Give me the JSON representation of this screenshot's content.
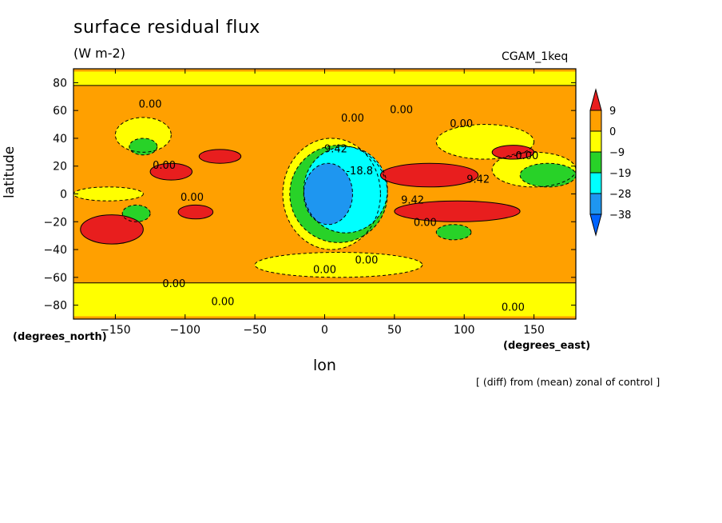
{
  "chart_data": {
    "type": "heatmap",
    "title": "surface residual flux",
    "units": "(W m-2)",
    "dataset": "CGAM_1keq",
    "xlabel": "lon",
    "ylabel": "latitude",
    "x_units": "(degrees_east)",
    "y_units": "(degrees_north)",
    "footnote": "[ (diff) from (mean) zonal of control ]",
    "xlim": [
      -180,
      180
    ],
    "ylim": [
      -90,
      90
    ],
    "x_ticks": [
      -150,
      -100,
      -50,
      0,
      50,
      100,
      150
    ],
    "y_ticks": [
      80,
      60,
      40,
      20,
      0,
      -20,
      -40,
      -60,
      -80
    ],
    "colorbar": {
      "labels": [
        "9",
        "0",
        "-9",
        "-19",
        "-28",
        "-38"
      ],
      "colors": [
        "#e81e1e",
        "#ffa000",
        "#ffff00",
        "#28d228",
        "#00ffff",
        "#1e96f0",
        "#0064ff"
      ]
    },
    "contour_labels": [
      "0.00",
      "9.42",
      "-9.42",
      "-18.8"
    ],
    "background_level": "0",
    "regions": [
      {
        "level": "-9",
        "color": "#ffff00",
        "lon": [
          -180,
          180
        ],
        "lat": [
          78,
          88
        ]
      },
      {
        "level": "-9",
        "color": "#ffff00",
        "lon": [
          -180,
          180
        ],
        "lat": [
          -88,
          -64
        ]
      },
      {
        "level": "-9",
        "color": "#ffff00",
        "lon": [
          -50,
          70
        ],
        "lat": [
          -60,
          -42
        ]
      },
      {
        "level": "-9",
        "color": "#ffff00",
        "lon": [
          -150,
          -110
        ],
        "lat": [
          30,
          55
        ]
      },
      {
        "level": "-9",
        "color": "#ffff00",
        "lon": [
          -30,
          40
        ],
        "lat": [
          -40,
          40
        ]
      },
      {
        "level": "-9",
        "color": "#ffff00",
        "lon": [
          80,
          150
        ],
        "lat": [
          25,
          50
        ]
      },
      {
        "level": "-9",
        "color": "#ffff00",
        "lon": [
          -180,
          -130
        ],
        "lat": [
          -5,
          5
        ]
      },
      {
        "level": "-9",
        "color": "#ffff00",
        "lon": [
          120,
          180
        ],
        "lat": [
          5,
          30
        ]
      },
      {
        "level": "-19",
        "color": "#28d228",
        "lon": [
          -140,
          -120
        ],
        "lat": [
          28,
          40
        ]
      },
      {
        "level": "-19",
        "color": "#28d228",
        "lon": [
          -145,
          -125
        ],
        "lat": [
          -20,
          -8
        ]
      },
      {
        "level": "-19",
        "color": "#28d228",
        "lon": [
          80,
          105
        ],
        "lat": [
          -33,
          -22
        ]
      },
      {
        "level": "-19",
        "color": "#28d228",
        "lon": [
          140,
          180
        ],
        "lat": [
          5,
          22
        ]
      },
      {
        "level": "-19",
        "color": "#28d228",
        "lon": [
          -25,
          45
        ],
        "lat": [
          -35,
          35
        ]
      },
      {
        "level": "-28",
        "color": "#00ffff",
        "lon": [
          -15,
          45
        ],
        "lat": [
          -28,
          34
        ]
      },
      {
        "level": "-38",
        "color": "#1e96f0",
        "lon": [
          -15,
          20
        ],
        "lat": [
          -22,
          22
        ]
      },
      {
        "level": "9",
        "color": "#e81e1e",
        "lon": [
          -175,
          -130
        ],
        "lat": [
          -36,
          -15
        ]
      },
      {
        "level": "9",
        "color": "#e81e1e",
        "lon": [
          -125,
          -95
        ],
        "lat": [
          10,
          22
        ]
      },
      {
        "level": "9",
        "color": "#e81e1e",
        "lon": [
          -105,
          -80
        ],
        "lat": [
          -18,
          -8
        ]
      },
      {
        "level": "9",
        "color": "#e81e1e",
        "lon": [
          -90,
          -60
        ],
        "lat": [
          22,
          32
        ]
      },
      {
        "level": "9",
        "color": "#e81e1e",
        "lon": [
          40,
          110
        ],
        "lat": [
          5,
          22
        ]
      },
      {
        "level": "9",
        "color": "#e81e1e",
        "lon": [
          50,
          140
        ],
        "lat": [
          -20,
          -5
        ]
      },
      {
        "level": "9",
        "color": "#e81e1e",
        "lon": [
          120,
          150
        ],
        "lat": [
          25,
          35
        ]
      }
    ]
  }
}
